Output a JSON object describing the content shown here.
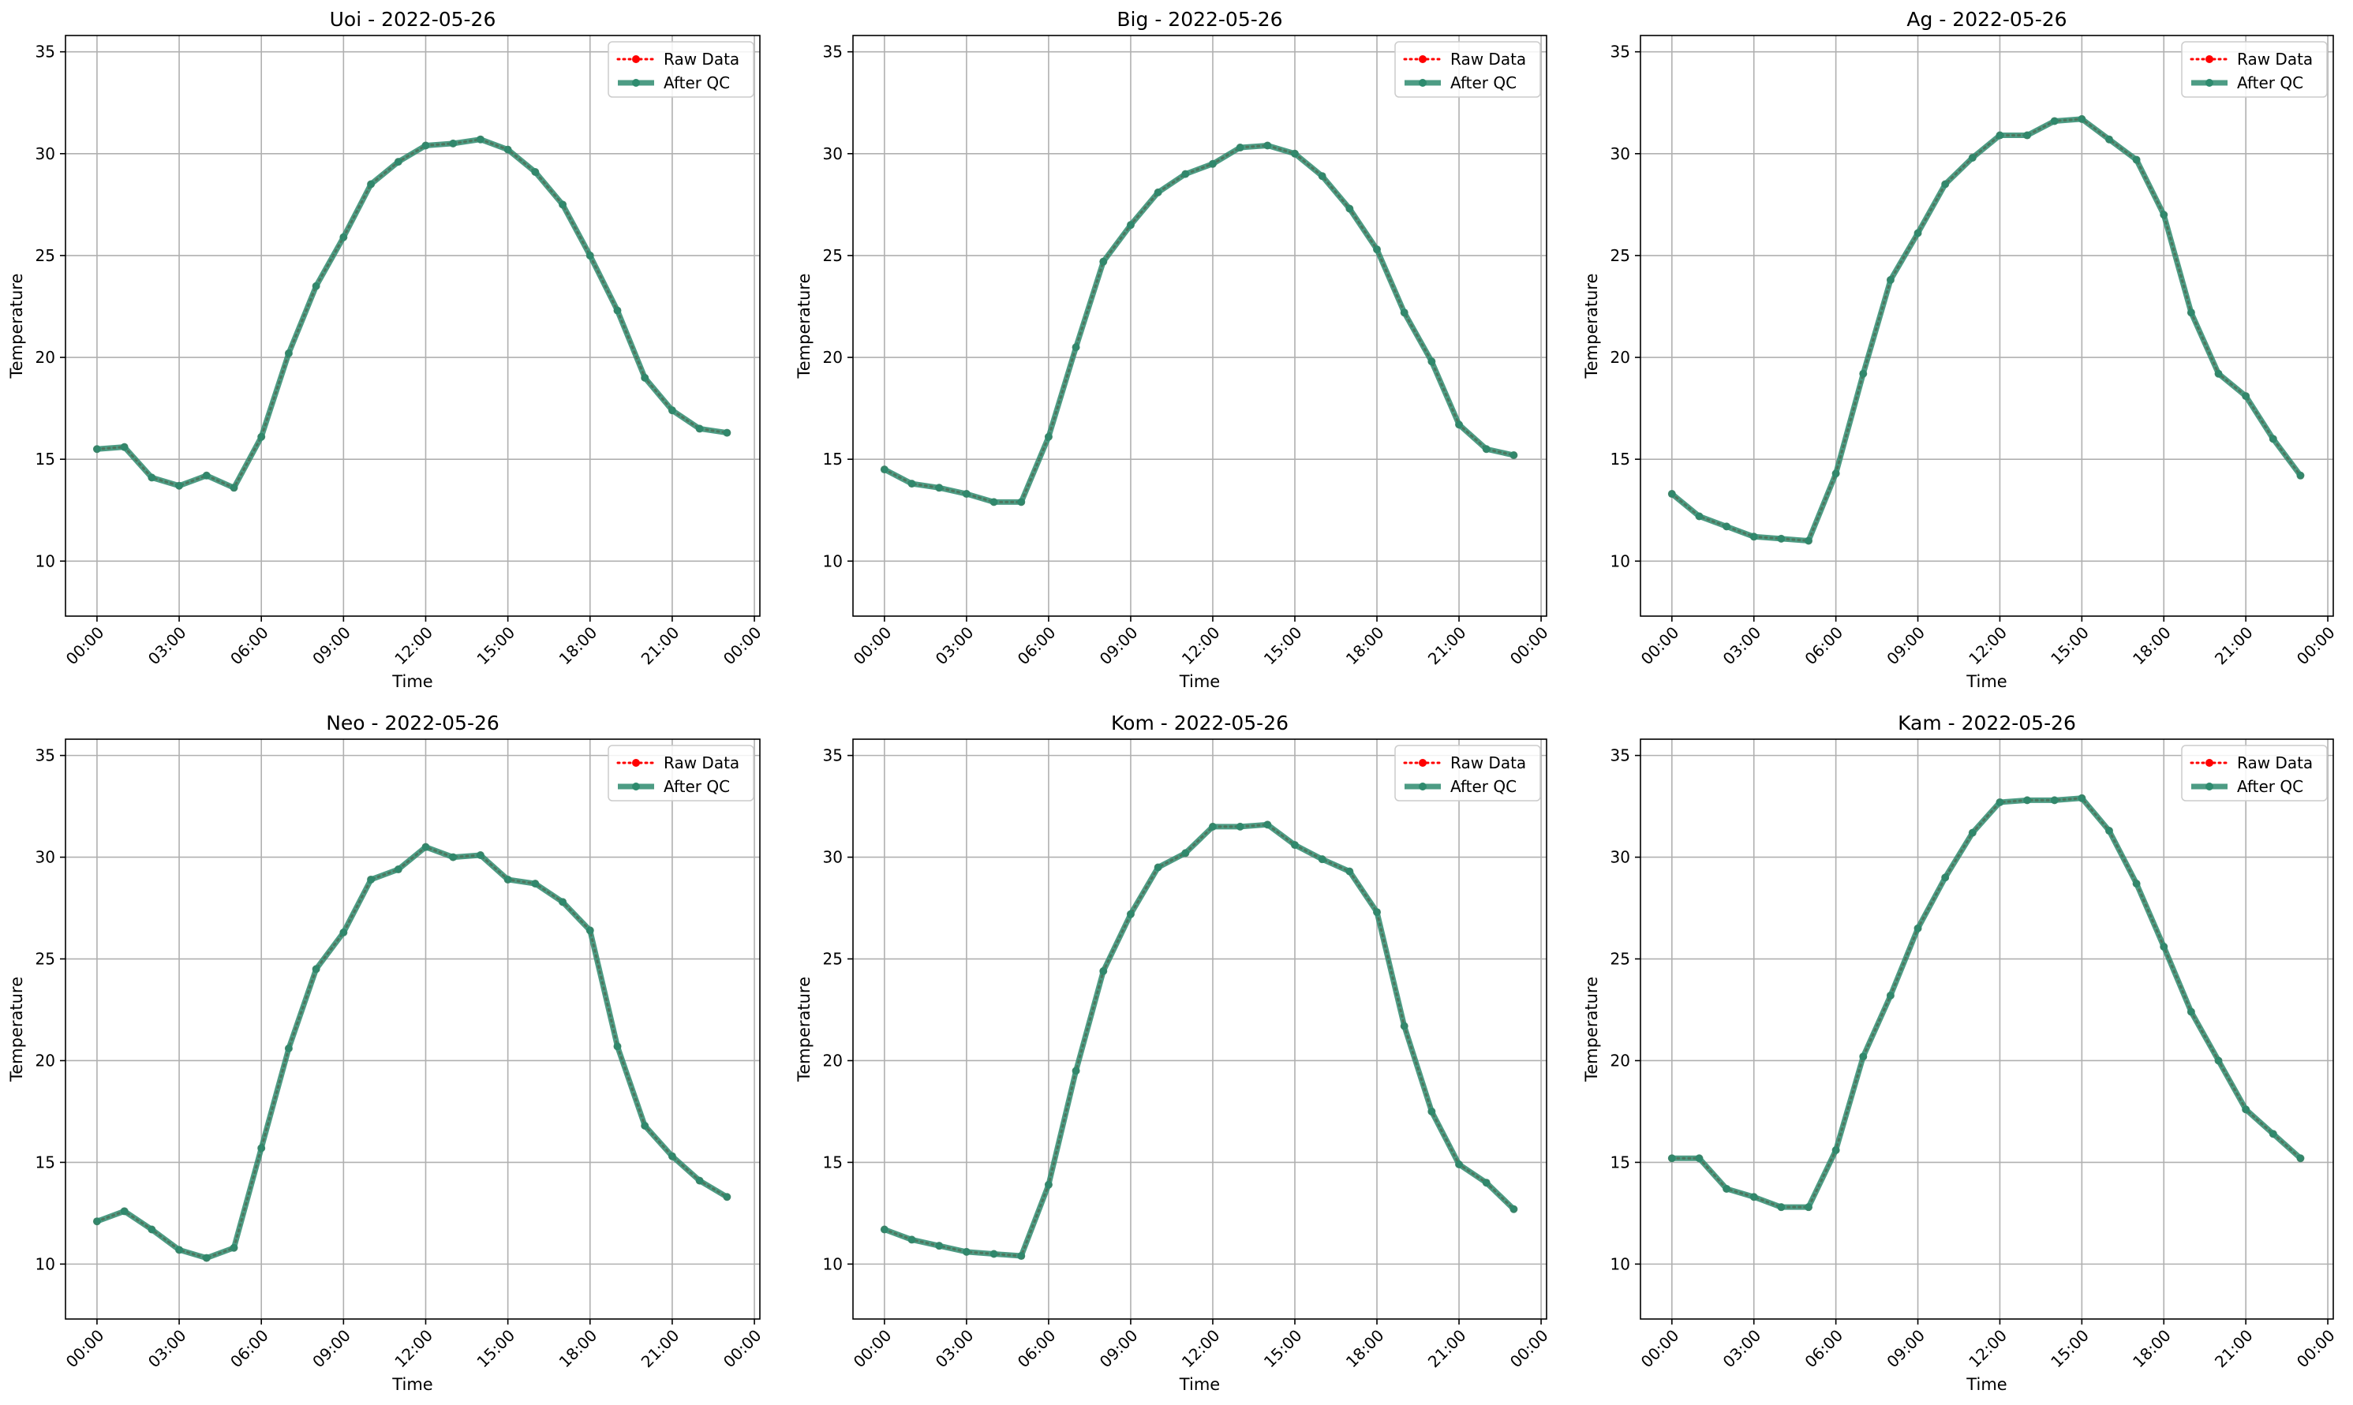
{
  "figure": {
    "time_axis_label": "Time",
    "value_axis_label": "Temperature",
    "legend_labels": [
      "Raw Data",
      "After QC"
    ]
  },
  "colors": {
    "raw": "#ff0000",
    "after_qc": "#2e8b6e",
    "grid": "#b0b0b0",
    "axes": "#000000"
  },
  "chart_data": [
    {
      "type": "line",
      "title": "Uoi - 2022-05-26",
      "xlabel": "Time",
      "ylabel": "Temperature",
      "x_unit": "hours since 2022-05-26 00:00",
      "x": [
        0,
        1,
        2,
        3,
        4,
        5,
        6,
        7,
        8,
        9,
        10,
        11,
        12,
        13,
        14,
        15,
        16,
        17,
        18,
        19,
        20,
        21,
        22,
        23
      ],
      "xticks": [
        "00:00",
        "03:00",
        "06:00",
        "09:00",
        "12:00",
        "15:00",
        "18:00",
        "21:00",
        "00:00"
      ],
      "ylim": [
        7.3,
        35.8
      ],
      "yticks": [
        10,
        15,
        20,
        25,
        30,
        35
      ],
      "grid": true,
      "legend": "top-right",
      "series": [
        {
          "name": "Raw Data",
          "style": "dotted-markers",
          "values": [
            15.5,
            15.6,
            14.1,
            13.7,
            14.2,
            13.6,
            16.1,
            20.2,
            23.5,
            25.9,
            28.5,
            29.6,
            30.4,
            30.5,
            30.7,
            30.2,
            29.1,
            27.5,
            25.0,
            22.3,
            19.0,
            17.4,
            16.5,
            16.3
          ]
        },
        {
          "name": "After QC",
          "style": "solid-markers",
          "values": [
            15.5,
            15.6,
            14.1,
            13.7,
            14.2,
            13.6,
            16.1,
            20.2,
            23.5,
            25.9,
            28.5,
            29.6,
            30.4,
            30.5,
            30.7,
            30.2,
            29.1,
            27.5,
            25.0,
            22.3,
            19.0,
            17.4,
            16.5,
            16.3
          ]
        }
      ]
    },
    {
      "type": "line",
      "title": "Big - 2022-05-26",
      "xlabel": "Time",
      "ylabel": "Temperature",
      "x_unit": "hours since 2022-05-26 00:00",
      "x": [
        0,
        1,
        2,
        3,
        4,
        5,
        6,
        7,
        8,
        9,
        10,
        11,
        12,
        13,
        14,
        15,
        16,
        17,
        18,
        19,
        20,
        21,
        22,
        23
      ],
      "xticks": [
        "00:00",
        "03:00",
        "06:00",
        "09:00",
        "12:00",
        "15:00",
        "18:00",
        "21:00",
        "00:00"
      ],
      "ylim": [
        7.3,
        35.8
      ],
      "yticks": [
        10,
        15,
        20,
        25,
        30,
        35
      ],
      "grid": true,
      "legend": "top-right",
      "series": [
        {
          "name": "Raw Data",
          "style": "dotted-markers",
          "values": [
            14.5,
            13.8,
            13.6,
            13.3,
            12.9,
            12.9,
            16.1,
            20.5,
            24.7,
            26.5,
            28.1,
            29.0,
            29.5,
            30.3,
            30.4,
            30.0,
            28.9,
            27.3,
            25.3,
            22.2,
            19.8,
            16.7,
            15.5,
            15.2
          ]
        },
        {
          "name": "After QC",
          "style": "solid-markers",
          "values": [
            14.5,
            13.8,
            13.6,
            13.3,
            12.9,
            12.9,
            16.1,
            20.5,
            24.7,
            26.5,
            28.1,
            29.0,
            29.5,
            30.3,
            30.4,
            30.0,
            28.9,
            27.3,
            25.3,
            22.2,
            19.8,
            16.7,
            15.5,
            15.2
          ]
        }
      ]
    },
    {
      "type": "line",
      "title": "Ag - 2022-05-26",
      "xlabel": "Time",
      "ylabel": "Temperature",
      "x_unit": "hours since 2022-05-26 00:00",
      "x": [
        0,
        1,
        2,
        3,
        4,
        5,
        6,
        7,
        8,
        9,
        10,
        11,
        12,
        13,
        14,
        15,
        16,
        17,
        18,
        19,
        20,
        21,
        22,
        23
      ],
      "xticks": [
        "00:00",
        "03:00",
        "06:00",
        "09:00",
        "12:00",
        "15:00",
        "18:00",
        "21:00",
        "00:00"
      ],
      "ylim": [
        7.3,
        35.8
      ],
      "yticks": [
        10,
        15,
        20,
        25,
        30,
        35
      ],
      "grid": true,
      "legend": "top-right",
      "series": [
        {
          "name": "Raw Data",
          "style": "dotted-markers",
          "values": [
            13.3,
            12.2,
            11.7,
            11.2,
            11.1,
            11.0,
            14.3,
            19.2,
            23.8,
            26.1,
            28.5,
            29.8,
            30.9,
            30.9,
            31.6,
            31.7,
            30.7,
            29.7,
            27.0,
            22.2,
            19.2,
            18.1,
            16.0,
            14.2
          ]
        },
        {
          "name": "After QC",
          "style": "solid-markers",
          "values": [
            13.3,
            12.2,
            11.7,
            11.2,
            11.1,
            11.0,
            14.3,
            19.2,
            23.8,
            26.1,
            28.5,
            29.8,
            30.9,
            30.9,
            31.6,
            31.7,
            30.7,
            29.7,
            27.0,
            22.2,
            19.2,
            18.1,
            16.0,
            14.2
          ]
        }
      ]
    },
    {
      "type": "line",
      "title": "Neo - 2022-05-26",
      "xlabel": "Time",
      "ylabel": "Temperature",
      "x_unit": "hours since 2022-05-26 00:00",
      "x": [
        0,
        1,
        2,
        3,
        4,
        5,
        6,
        7,
        8,
        9,
        10,
        11,
        12,
        13,
        14,
        15,
        16,
        17,
        18,
        19,
        20,
        21,
        22,
        23
      ],
      "xticks": [
        "00:00",
        "03:00",
        "06:00",
        "09:00",
        "12:00",
        "15:00",
        "18:00",
        "21:00",
        "00:00"
      ],
      "ylim": [
        7.3,
        35.8
      ],
      "yticks": [
        10,
        15,
        20,
        25,
        30,
        35
      ],
      "grid": true,
      "legend": "top-right",
      "series": [
        {
          "name": "Raw Data",
          "style": "dotted-markers",
          "values": [
            12.1,
            12.6,
            11.7,
            10.7,
            10.3,
            10.8,
            15.7,
            20.6,
            24.5,
            26.3,
            28.9,
            29.4,
            30.5,
            30.0,
            30.1,
            28.9,
            28.7,
            27.8,
            26.4,
            20.7,
            16.8,
            15.3,
            14.1,
            13.3
          ]
        },
        {
          "name": "After QC",
          "style": "solid-markers",
          "values": [
            12.1,
            12.6,
            11.7,
            10.7,
            10.3,
            10.8,
            15.7,
            20.6,
            24.5,
            26.3,
            28.9,
            29.4,
            30.5,
            30.0,
            30.1,
            28.9,
            28.7,
            27.8,
            26.4,
            20.7,
            16.8,
            15.3,
            14.1,
            13.3
          ]
        }
      ]
    },
    {
      "type": "line",
      "title": "Kom - 2022-05-26",
      "xlabel": "Time",
      "ylabel": "Temperature",
      "x_unit": "hours since 2022-05-26 00:00",
      "x": [
        0,
        1,
        2,
        3,
        4,
        5,
        6,
        7,
        8,
        9,
        10,
        11,
        12,
        13,
        14,
        15,
        16,
        17,
        18,
        19,
        20,
        21,
        22,
        23
      ],
      "xticks": [
        "00:00",
        "03:00",
        "06:00",
        "09:00",
        "12:00",
        "15:00",
        "18:00",
        "21:00",
        "00:00"
      ],
      "ylim": [
        7.3,
        35.8
      ],
      "yticks": [
        10,
        15,
        20,
        25,
        30,
        35
      ],
      "grid": true,
      "legend": "top-right",
      "series": [
        {
          "name": "Raw Data",
          "style": "dotted-markers",
          "values": [
            11.7,
            11.2,
            10.9,
            10.6,
            10.5,
            10.4,
            13.9,
            19.5,
            24.4,
            27.2,
            29.5,
            30.2,
            31.5,
            31.5,
            31.6,
            30.6,
            29.9,
            29.3,
            27.3,
            21.7,
            17.5,
            14.9,
            14.0,
            12.7
          ]
        },
        {
          "name": "After QC",
          "style": "solid-markers",
          "values": [
            11.7,
            11.2,
            10.9,
            10.6,
            10.5,
            10.4,
            13.9,
            19.5,
            24.4,
            27.2,
            29.5,
            30.2,
            31.5,
            31.5,
            31.6,
            30.6,
            29.9,
            29.3,
            27.3,
            21.7,
            17.5,
            14.9,
            14.0,
            12.7
          ]
        }
      ]
    },
    {
      "type": "line",
      "title": "Kam - 2022-05-26",
      "xlabel": "Time",
      "ylabel": "Temperature",
      "x_unit": "hours since 2022-05-26 00:00",
      "x": [
        0,
        1,
        2,
        3,
        4,
        5,
        6,
        7,
        8,
        9,
        10,
        11,
        12,
        13,
        14,
        15,
        16,
        17,
        18,
        19,
        20,
        21,
        22,
        23
      ],
      "xticks": [
        "00:00",
        "03:00",
        "06:00",
        "09:00",
        "12:00",
        "15:00",
        "18:00",
        "21:00",
        "00:00"
      ],
      "ylim": [
        7.3,
        35.8
      ],
      "yticks": [
        10,
        15,
        20,
        25,
        30,
        35
      ],
      "grid": true,
      "legend": "top-right",
      "series": [
        {
          "name": "Raw Data",
          "style": "dotted-markers",
          "values": [
            15.2,
            15.2,
            13.7,
            13.3,
            12.8,
            12.8,
            15.6,
            20.2,
            23.2,
            26.5,
            29.0,
            31.2,
            32.7,
            32.8,
            32.8,
            32.9,
            31.3,
            28.7,
            25.6,
            22.4,
            20.0,
            17.6,
            16.4,
            15.2
          ]
        },
        {
          "name": "After QC",
          "style": "solid-markers",
          "values": [
            15.2,
            15.2,
            13.7,
            13.3,
            12.8,
            12.8,
            15.6,
            20.2,
            23.2,
            26.5,
            29.0,
            31.2,
            32.7,
            32.8,
            32.8,
            32.9,
            31.3,
            28.7,
            25.6,
            22.4,
            20.0,
            17.6,
            16.4,
            15.2
          ]
        }
      ]
    }
  ]
}
